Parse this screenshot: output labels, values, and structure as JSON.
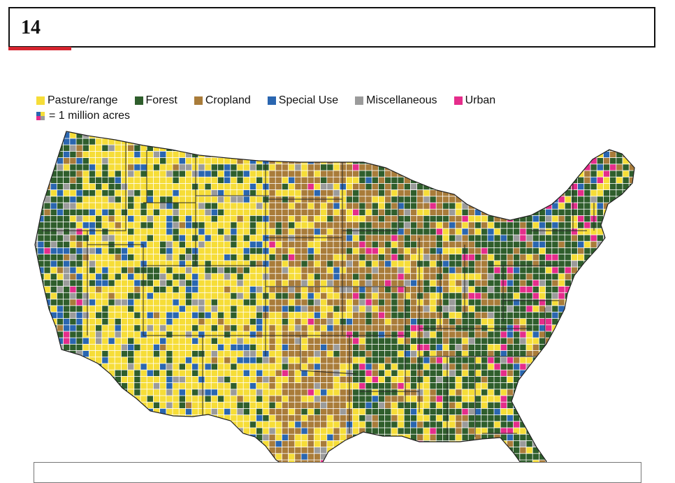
{
  "page": {
    "number": "14"
  },
  "colors": {
    "accent_red": "#d6242f",
    "pasture": "#f6dd38",
    "forest": "#2f5e2c",
    "cropland": "#a97c3a",
    "special": "#2a66b0",
    "misc": "#9b9b9b",
    "urban": "#e52d8b"
  },
  "legend": {
    "items": [
      {
        "key": "pasture",
        "label": "Pasture/range"
      },
      {
        "key": "forest",
        "label": "Forest"
      },
      {
        "key": "cropland",
        "label": "Cropland"
      },
      {
        "key": "special",
        "label": "Special Use"
      },
      {
        "key": "misc",
        "label": "Miscellaneous"
      },
      {
        "key": "urban",
        "label": "Urban"
      }
    ],
    "unit_label": "= 1 million acres"
  },
  "map": {
    "cell_unit": "1 million acres",
    "icon": "us-land-use-grid-map"
  }
}
